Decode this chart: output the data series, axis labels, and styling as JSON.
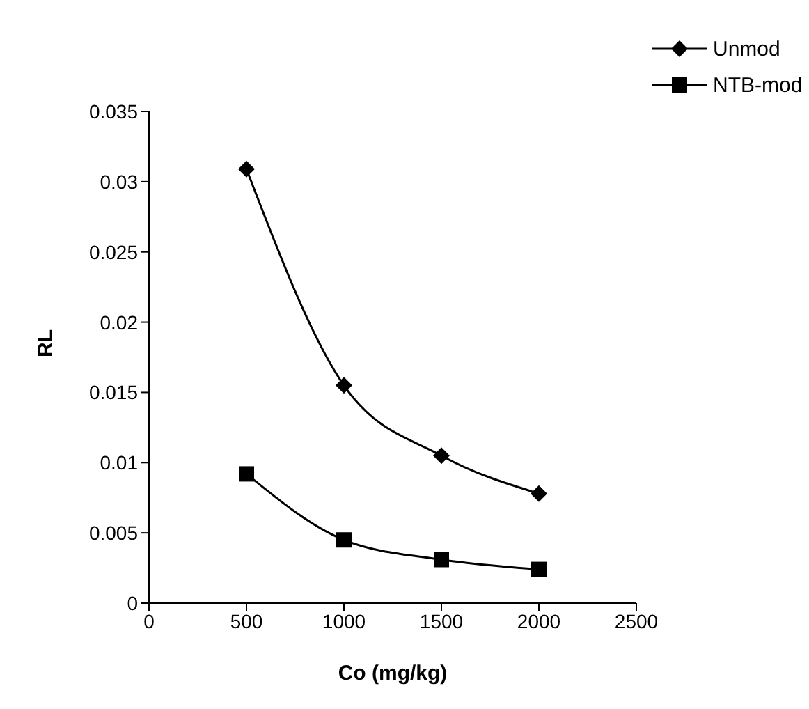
{
  "chart_data": {
    "type": "line",
    "xlabel": "Co (mg/kg)",
    "ylabel": "RL",
    "x": [
      500,
      1000,
      1500,
      2000
    ],
    "series": [
      {
        "name": "Unmod",
        "color": "#000000",
        "marker": "diamond",
        "values": [
          0.0309,
          0.0155,
          0.0105,
          0.0078
        ]
      },
      {
        "name": "NTB-mod",
        "color": "#000000",
        "marker": "square",
        "values": [
          0.0092,
          0.0045,
          0.0031,
          0.0024
        ]
      }
    ],
    "xlim": [
      0,
      2500
    ],
    "xticks": [
      0,
      500,
      1000,
      1500,
      2000,
      2500
    ],
    "ylim": [
      0,
      0.035
    ],
    "yticks": [
      0,
      0.005,
      0.01,
      0.015,
      0.02,
      0.025,
      0.03,
      0.035
    ],
    "grid": false,
    "legend": "top right",
    "line_style": "solid"
  }
}
